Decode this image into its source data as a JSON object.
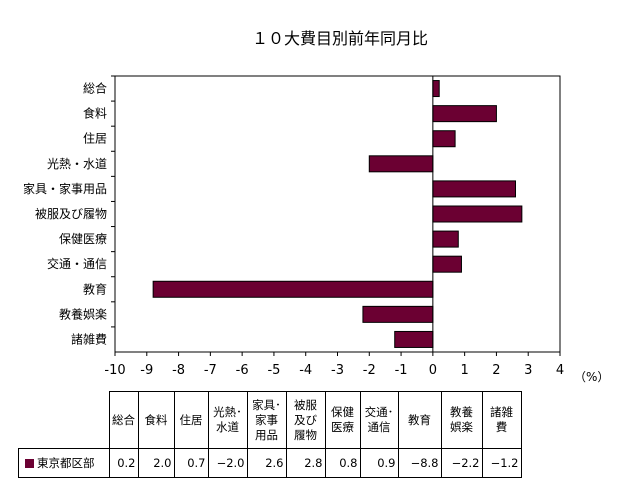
{
  "chart_data": {
    "type": "bar",
    "orientation": "horizontal",
    "title": "１０大費目別前年同月比",
    "categories": [
      "総合",
      "食料",
      "住居",
      "光熱・水道",
      "家具・家事用品",
      "被服及び履物",
      "保健医療",
      "交通・通信",
      "教育",
      "教養娯楽",
      "諸雑費"
    ],
    "table_headers": [
      "総合",
      "食料",
      "住居",
      "光熱･\n水道",
      "家具･\n家事\n用品",
      "被服\n及び\n履物",
      "保健\n医療",
      "交通･\n通信",
      "教育",
      "教養\n娯楽",
      "諸雑\n費"
    ],
    "series": [
      {
        "name": "東京都区部",
        "values": [
          0.2,
          2.0,
          0.7,
          -2.0,
          2.6,
          2.8,
          0.8,
          0.9,
          -8.8,
          -2.2,
          -1.2
        ]
      }
    ],
    "value_labels": [
      "0.2",
      "2.0",
      "0.7",
      "−2.0",
      "2.6",
      "2.8",
      "0.8",
      "0.9",
      "−8.8",
      "−2.2",
      "−1.2"
    ],
    "xlim": [
      -10,
      4
    ],
    "xticks": [
      -10,
      -9,
      -8,
      -7,
      -6,
      -5,
      -4,
      -3,
      -2,
      -1,
      0,
      1,
      2,
      3,
      4
    ],
    "xlabel": "",
    "ylabel": "",
    "unit": "（%）",
    "bar_color": "#6b0032",
    "grid": false,
    "legend": "in data table"
  }
}
